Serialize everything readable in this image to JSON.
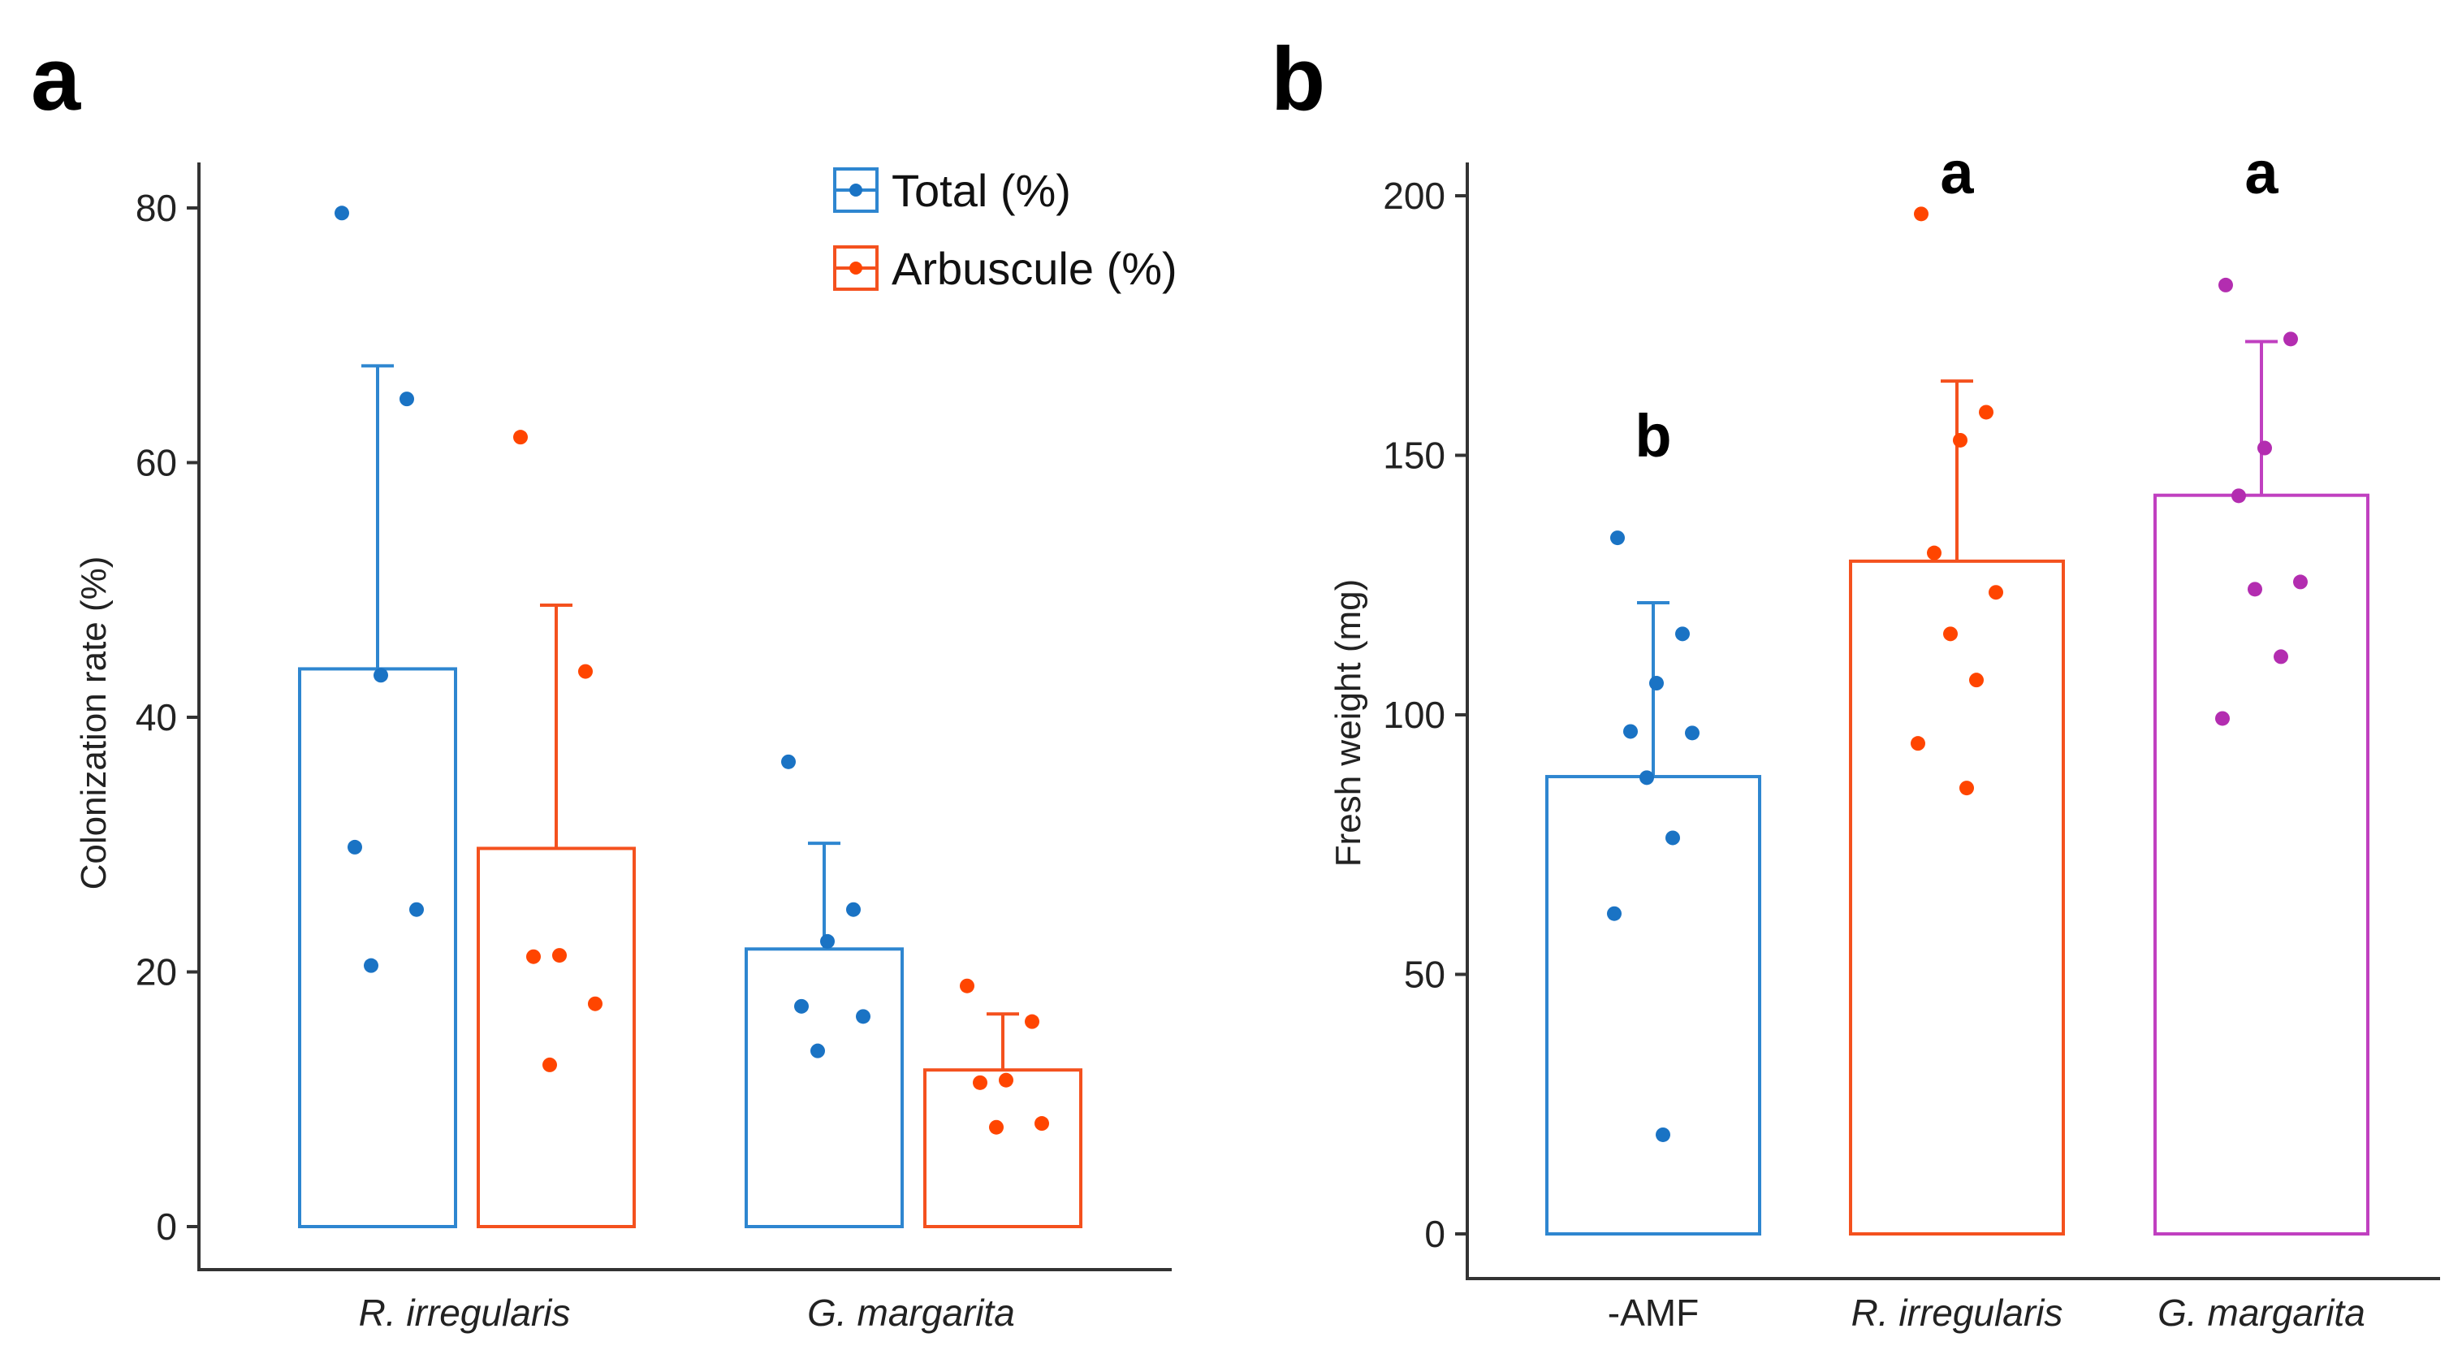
{
  "panels": {
    "a": {
      "letter": "a"
    },
    "b": {
      "letter": "b"
    }
  },
  "colors": {
    "total": "#2E86D0",
    "arbuscule": "#F4511E",
    "amf_none": "#2E86D0",
    "r_irregularis": "#F4511E",
    "g_margarita": "#C040C0",
    "point_total": "#1A73C4",
    "point_arbuscule": "#FF4500",
    "point_g": "#B32DB0"
  },
  "chart_data": [
    {
      "id": "a",
      "type": "bar",
      "title": "",
      "xlabel": "",
      "ylabel": "Colonization rate (%)",
      "ylim": [
        0,
        84
      ],
      "yticks": [
        0,
        20,
        40,
        60,
        80
      ],
      "categories": [
        "R. irregularis",
        "G. margarita"
      ],
      "legend_position": "top-right",
      "series": [
        {
          "name": "Total (%)",
          "color_key": "total",
          "point_color_key": "point_total",
          "values": [
            43.8,
            21.8
          ],
          "error_upper": [
            67.6,
            30.1
          ],
          "points": [
            [
              79.6,
              65.0,
              43.3,
              29.8,
              24.9,
              20.5
            ],
            [
              36.5,
              24.9,
              22.4,
              17.3,
              16.5,
              13.8
            ]
          ]
        },
        {
          "name": "Arbuscule (%)",
          "color_key": "arbuscule",
          "point_color_key": "point_arbuscule",
          "values": [
            29.7,
            12.3
          ],
          "error_upper": [
            48.8,
            16.7
          ],
          "points": [
            [
              62.0,
              43.6,
              21.3,
              21.2,
              17.5,
              12.7
            ],
            [
              18.9,
              16.1,
              11.5,
              11.3,
              8.1,
              7.8
            ]
          ]
        }
      ]
    },
    {
      "id": "b",
      "type": "bar",
      "title": "",
      "xlabel": "",
      "ylabel": "Fresh weight (mg)",
      "ylim": [
        0,
        206
      ],
      "yticks": [
        0,
        50,
        100,
        150,
        200
      ],
      "categories": [
        "-AMF",
        "R. irregularis",
        "G. margarita"
      ],
      "series": [
        {
          "name": "Fresh weight",
          "values": [
            88.1,
            129.6,
            142.3
          ],
          "error_upper": [
            121.6,
            164.3,
            171.9
          ],
          "color_keys": [
            "amf_none",
            "r_irregularis",
            "g_margarita"
          ],
          "point_color_keys": [
            "point_total",
            "point_arbuscule",
            "point_g"
          ],
          "significance": [
            "b",
            "a",
            "a"
          ],
          "points": [
            [
              134.1,
              115.6,
              106.1,
              96.8,
              96.5,
              87.9,
              76.3,
              61.7,
              19.1
            ],
            [
              196.5,
              158.3,
              152.9,
              131.2,
              123.6,
              115.6,
              106.7,
              94.5,
              85.9
            ],
            [
              182.8,
              172.4,
              151.4,
              142.2,
              125.6,
              124.2,
              111.2,
              99.3
            ]
          ]
        }
      ]
    }
  ]
}
